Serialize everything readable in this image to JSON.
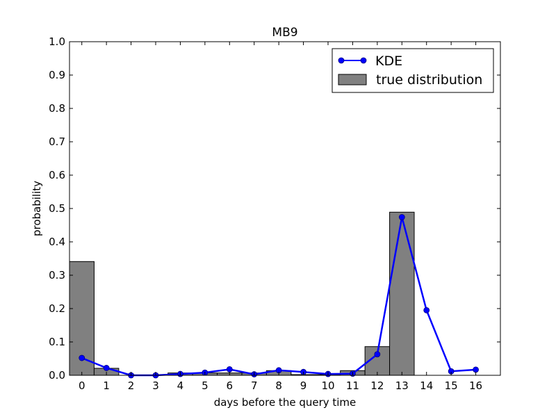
{
  "chart_data": {
    "type": "bar",
    "title": "MB9",
    "xlabel": "days before the query time",
    "ylabel": "probability",
    "xlim": [
      -0.5,
      17
    ],
    "ylim": [
      0,
      1.0
    ],
    "x_ticks": [
      "0",
      "1",
      "2",
      "3",
      "4",
      "5",
      "6",
      "7",
      "8",
      "9",
      "10",
      "11",
      "12",
      "13",
      "14",
      "15",
      "16"
    ],
    "y_ticks": [
      "0.0",
      "0.1",
      "0.2",
      "0.3",
      "0.4",
      "0.5",
      "0.6",
      "0.7",
      "0.8",
      "0.9",
      "1.0"
    ],
    "legend_position": "top-right",
    "grid": false,
    "series": [
      {
        "name": "KDE",
        "kind": "line",
        "color": "#0000ff",
        "x": [
          0,
          1,
          2,
          3,
          4,
          5,
          6,
          7,
          8,
          9,
          10,
          11,
          12,
          13,
          14,
          15,
          16
        ],
        "y": [
          0.052,
          0.022,
          0.0,
          0.0,
          0.004,
          0.008,
          0.018,
          0.003,
          0.015,
          0.01,
          0.004,
          0.005,
          0.063,
          0.474,
          0.195,
          0.012,
          0.017
        ]
      },
      {
        "name": "true distribution",
        "kind": "bar",
        "color": "#808080",
        "x": [
          0,
          1,
          2,
          3,
          4,
          5,
          6,
          7,
          8,
          9,
          10,
          11,
          12,
          13,
          14,
          15,
          16
        ],
        "y": [
          0.341,
          0.021,
          0.0,
          0.0,
          0.007,
          0.007,
          0.007,
          0.007,
          0.014,
          0.002,
          0.002,
          0.014,
          0.086,
          0.489,
          0.0,
          0.0,
          0.0
        ]
      }
    ]
  }
}
